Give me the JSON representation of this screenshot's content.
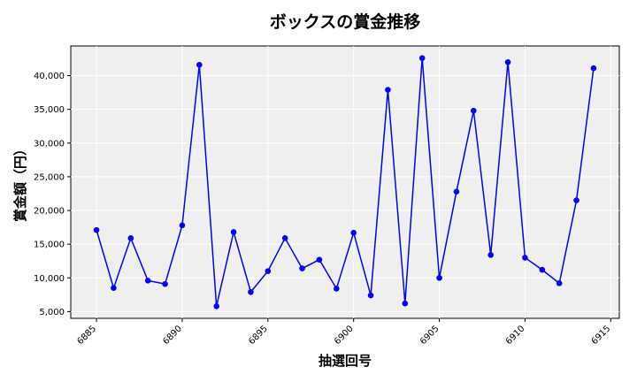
{
  "chart_data": {
    "type": "line",
    "title": "ボックスの賞金推移",
    "xlabel": "抽選回号",
    "ylabel": "賞金額（円）",
    "x": [
      6885,
      6886,
      6887,
      6888,
      6889,
      6890,
      6891,
      6892,
      6893,
      6894,
      6895,
      6896,
      6897,
      6898,
      6899,
      6900,
      6901,
      6902,
      6903,
      6904,
      6905,
      6906,
      6907,
      6908,
      6909,
      6910,
      6911,
      6912,
      6913,
      6914
    ],
    "series": [
      {
        "values": [
          17100,
          8500,
          15900,
          9600,
          9100,
          17800,
          41600,
          5800,
          16800,
          7900,
          11000,
          15900,
          11400,
          12700,
          8400,
          16700,
          7400,
          37900,
          6200,
          42600,
          10000,
          22800,
          34800,
          13400,
          42000,
          13000,
          11200,
          9200,
          21500,
          41100
        ],
        "color": "#0000ff"
      }
    ],
    "xlim": [
      6883.5,
      6915.5
    ],
    "ylim": [
      4000,
      44400
    ],
    "xticks": [
      "6885",
      "6890",
      "6895",
      "6900",
      "6905",
      "6910",
      "6915"
    ],
    "yticks": [
      "5,000",
      "10,000",
      "15,000",
      "20,000",
      "25,000",
      "30,000",
      "35,000",
      "40,000"
    ],
    "grid": true,
    "background": "#efefef"
  }
}
